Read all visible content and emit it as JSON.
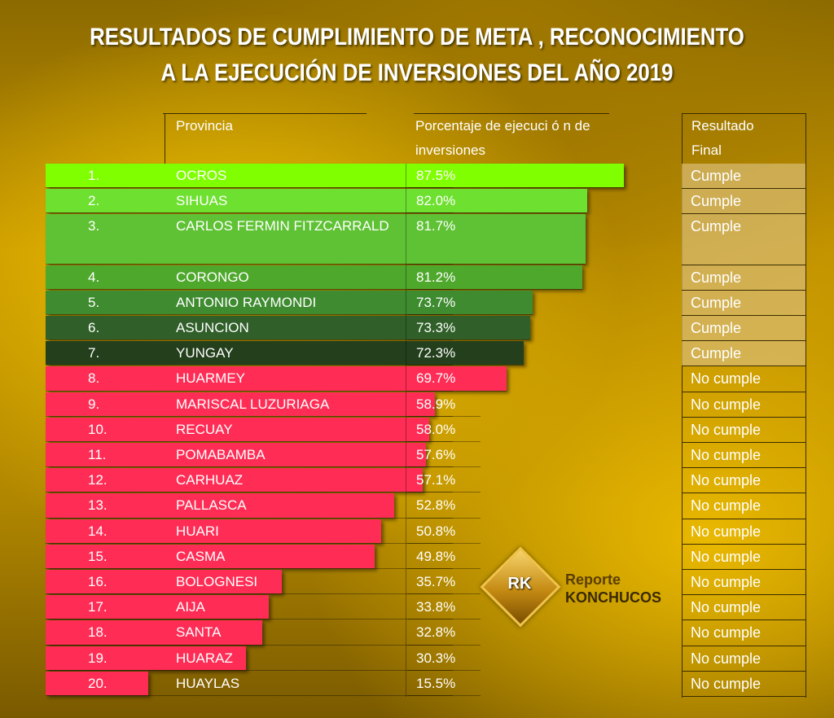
{
  "title_line1": "RESULTADOS DE CUMPLIMIENTO DE META , RECONOCIMIENTO",
  "title_line2": "A LA EJECUCIÓN DE INVERSIONES DEL AÑO 2019",
  "headers": {
    "provincia": "Provincia",
    "porcentaje_1": "Porcentaje de ejecuci ó n de",
    "porcentaje_2": "inversiones",
    "resultado_1": "Resultado",
    "resultado_2": "Final"
  },
  "colors": {
    "cumple_shades": [
      "#7fff00",
      "#6ee030",
      "#5fc234",
      "#4ea82c",
      "#3f8b30",
      "#305f29",
      "#233f1c"
    ],
    "no_cumple": "#ff2d55"
  },
  "logo": {
    "mark": "RK",
    "line1": "Reporte",
    "line2": "KONCHUCOS"
  },
  "chart_data": {
    "type": "bar",
    "orientation": "horizontal",
    "title": "RESULTADOS DE CUMPLIMIENTO DE META , RECONOCIMIENTO A LA EJECUCIÓN DE INVERSIONES DEL AÑO 2019",
    "rows": [
      {
        "rank": "1.",
        "provincia": "OCROS",
        "value": 87.5,
        "label": "87.5%",
        "resultado": "Cumple"
      },
      {
        "rank": "2.",
        "provincia": "SIHUAS",
        "value": 82.0,
        "label": "82.0%",
        "resultado": "Cumple"
      },
      {
        "rank": "3.",
        "provincia": "CARLOS FERMIN FITZCARRALD",
        "value": 81.7,
        "label": "81.7%",
        "resultado": "Cumple"
      },
      {
        "rank": "4.",
        "provincia": "CORONGO",
        "value": 81.2,
        "label": "81.2%",
        "resultado": "Cumple"
      },
      {
        "rank": "5.",
        "provincia": "ANTONIO RAYMONDI",
        "value": 73.7,
        "label": "73.7%",
        "resultado": "Cumple"
      },
      {
        "rank": "6.",
        "provincia": "ASUNCION",
        "value": 73.3,
        "label": "73.3%",
        "resultado": "Cumple"
      },
      {
        "rank": "7.",
        "provincia": "YUNGAY",
        "value": 72.3,
        "label": "72.3%",
        "resultado": "Cumple"
      },
      {
        "rank": "8.",
        "provincia": "HUARMEY",
        "value": 69.7,
        "label": "69.7%",
        "resultado": "No cumple"
      },
      {
        "rank": "9.",
        "provincia": "MARISCAL LUZURIAGA",
        "value": 58.9,
        "label": "58.9%",
        "resultado": "No cumple"
      },
      {
        "rank": "10.",
        "provincia": "RECUAY",
        "value": 58.0,
        "label": "58.0%",
        "resultado": "No cumple"
      },
      {
        "rank": "11.",
        "provincia": "POMABAMBA",
        "value": 57.6,
        "label": "57.6%",
        "resultado": "No cumple"
      },
      {
        "rank": "12.",
        "provincia": "CARHUAZ",
        "value": 57.1,
        "label": "57.1%",
        "resultado": "No cumple"
      },
      {
        "rank": "13.",
        "provincia": "PALLASCA",
        "value": 52.8,
        "label": "52.8%",
        "resultado": "No cumple"
      },
      {
        "rank": "14.",
        "provincia": "HUARI",
        "value": 50.8,
        "label": "50.8%",
        "resultado": "No cumple"
      },
      {
        "rank": "15.",
        "provincia": "CASMA",
        "value": 49.8,
        "label": "49.8%",
        "resultado": "No cumple"
      },
      {
        "rank": "16.",
        "provincia": "BOLOGNESI",
        "value": 35.7,
        "label": "35.7%",
        "resultado": "No cumple"
      },
      {
        "rank": "17.",
        "provincia": "AIJA",
        "value": 33.8,
        "label": "33.8%",
        "resultado": "No cumple"
      },
      {
        "rank": "18.",
        "provincia": "SANTA",
        "value": 32.8,
        "label": "32.8%",
        "resultado": "No cumple"
      },
      {
        "rank": "19.",
        "provincia": "HUARAZ",
        "value": 30.3,
        "label": "30.3%",
        "resultado": "No cumple"
      },
      {
        "rank": "20.",
        "provincia": "HUAYLAS",
        "value": 15.5,
        "label": "15.5%",
        "resultado": "No cumple"
      }
    ]
  }
}
